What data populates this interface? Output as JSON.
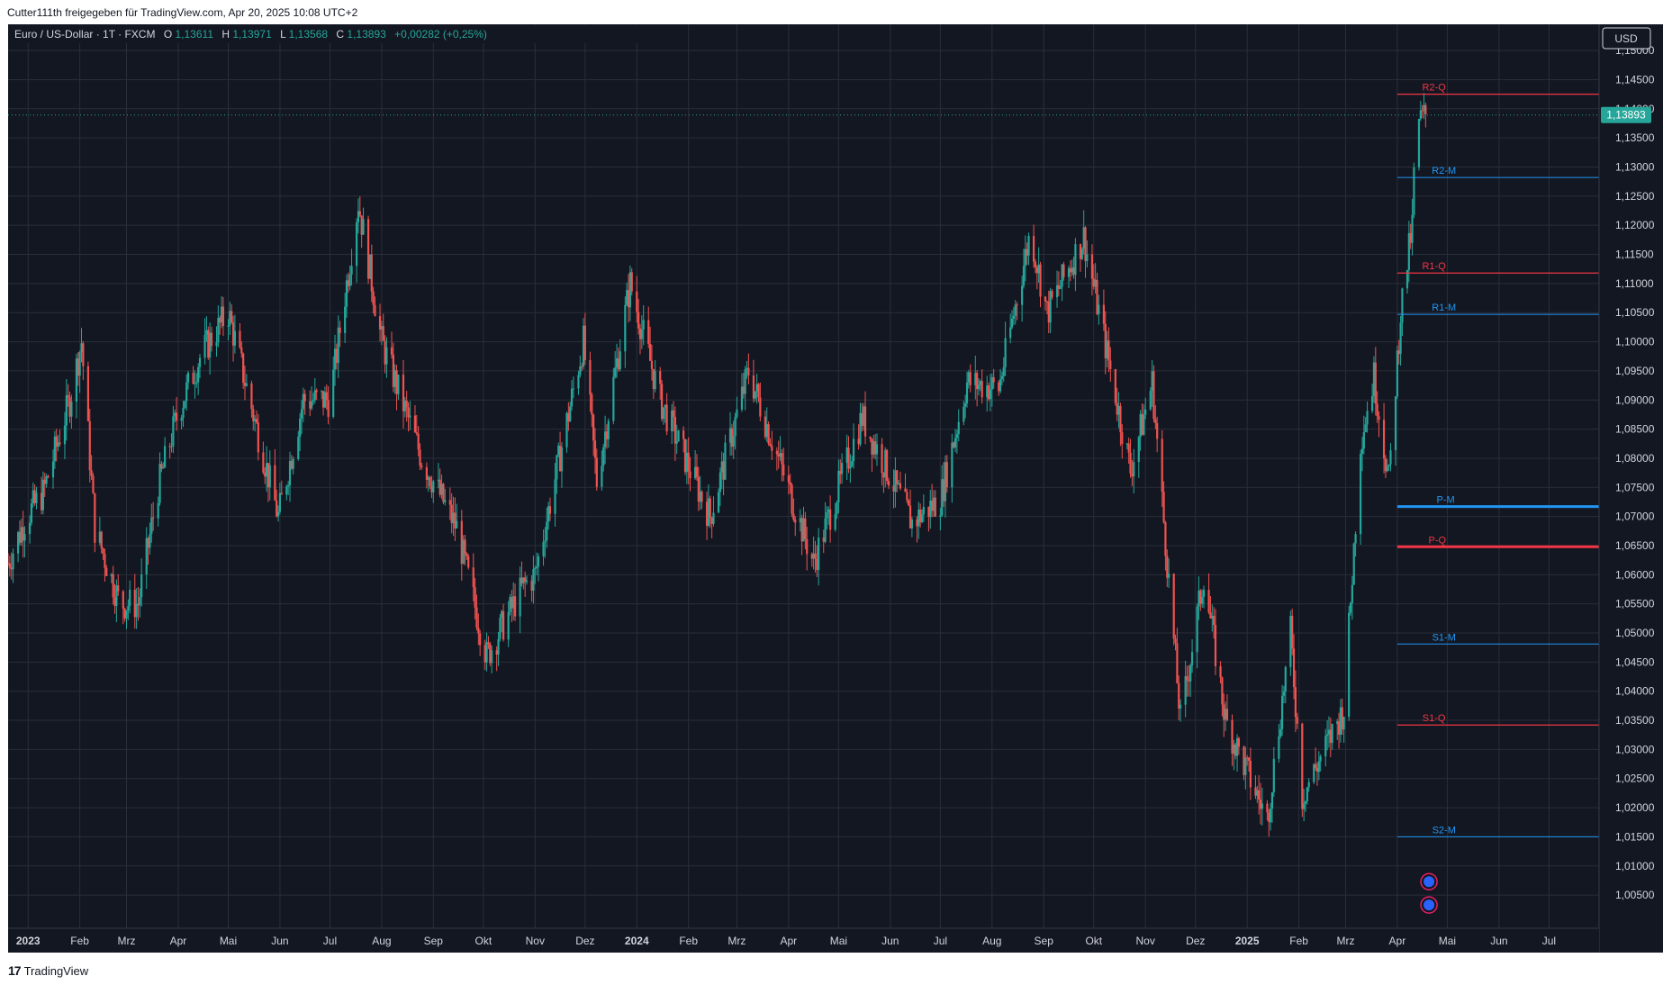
{
  "share_line": "Cutter111th freigegeben für TradingView.com, Apr 20, 2025 10:08 UTC+2",
  "footer": {
    "logo_mark": "17",
    "logo_text": "TradingView"
  },
  "currency_button": "USD",
  "legend": {
    "symbol": "Euro / US-Dollar · 1T · FXCM",
    "o_label": "O",
    "o_value": "1,13611",
    "h_label": "H",
    "h_value": "1,13971",
    "l_label": "L",
    "l_value": "1,13568",
    "c_label": "C",
    "c_value": "1,13893",
    "change": "+0,00282 (+0,25%)"
  },
  "colors": {
    "background": "#131722",
    "grid": "#2a2e39",
    "up": "#26a69a",
    "down": "#ef5350",
    "monthly_pivot": "#2196f3",
    "quarterly_pivot": "#f23645",
    "text": "#d1d4dc"
  },
  "chart_data": {
    "type": "candlestick",
    "symbol": "EUR/USD",
    "interval": "1D",
    "y_axis": {
      "range": [
        0.9993,
        1.1545
      ],
      "ticks": [
        "1,15000",
        "1,14500",
        "1,14000",
        "1,13500",
        "1,13000",
        "1,12500",
        "1,12000",
        "1,11500",
        "1,11000",
        "1,10500",
        "1,10000",
        "1,09500",
        "1,09000",
        "1,08500",
        "1,08000",
        "1,07500",
        "1,07000",
        "1,06500",
        "1,06000",
        "1,05500",
        "1,05000",
        "1,04500",
        "1,04000",
        "1,03500",
        "1,03000",
        "1,02500",
        "1,02000",
        "1,01500",
        "1,01000",
        "1,00500"
      ],
      "tick_values": [
        1.15,
        1.145,
        1.14,
        1.135,
        1.13,
        1.125,
        1.12,
        1.115,
        1.11,
        1.105,
        1.1,
        1.095,
        1.09,
        1.085,
        1.08,
        1.075,
        1.07,
        1.065,
        1.06,
        1.055,
        1.05,
        1.045,
        1.04,
        1.035,
        1.03,
        1.025,
        1.02,
        1.015,
        1.01,
        1.005
      ]
    },
    "x_axis": {
      "start": "2022-12-20",
      "end": "2025-07-31",
      "labels": [
        {
          "date": "2023-01-01",
          "text": "2023",
          "bold": true
        },
        {
          "date": "2023-02-01",
          "text": "Feb"
        },
        {
          "date": "2023-03-01",
          "text": "Mrz"
        },
        {
          "date": "2023-04-01",
          "text": "Apr"
        },
        {
          "date": "2023-05-01",
          "text": "Mai"
        },
        {
          "date": "2023-06-01",
          "text": "Jun"
        },
        {
          "date": "2023-07-01",
          "text": "Jul"
        },
        {
          "date": "2023-08-01",
          "text": "Aug"
        },
        {
          "date": "2023-09-01",
          "text": "Sep"
        },
        {
          "date": "2023-10-01",
          "text": "Okt"
        },
        {
          "date": "2023-11-01",
          "text": "Nov"
        },
        {
          "date": "2023-12-01",
          "text": "Dez"
        },
        {
          "date": "2024-01-01",
          "text": "2024",
          "bold": true
        },
        {
          "date": "2024-02-01",
          "text": "Feb"
        },
        {
          "date": "2024-03-01",
          "text": "Mrz"
        },
        {
          "date": "2024-04-01",
          "text": "Apr"
        },
        {
          "date": "2024-05-01",
          "text": "Mai"
        },
        {
          "date": "2024-06-01",
          "text": "Jun"
        },
        {
          "date": "2024-07-01",
          "text": "Jul"
        },
        {
          "date": "2024-08-01",
          "text": "Aug"
        },
        {
          "date": "2024-09-01",
          "text": "Sep"
        },
        {
          "date": "2024-10-01",
          "text": "Okt"
        },
        {
          "date": "2024-11-01",
          "text": "Nov"
        },
        {
          "date": "2024-12-01",
          "text": "Dez"
        },
        {
          "date": "2025-01-01",
          "text": "2025",
          "bold": true
        },
        {
          "date": "2025-02-01",
          "text": "Feb"
        },
        {
          "date": "2025-03-01",
          "text": "Mrz"
        },
        {
          "date": "2025-04-01",
          "text": "Apr"
        },
        {
          "date": "2025-05-01",
          "text": "Mai"
        },
        {
          "date": "2025-06-01",
          "text": "Jun"
        },
        {
          "date": "2025-07-01",
          "text": "Jul"
        }
      ]
    },
    "price_path": [
      {
        "date": "2022-12-20",
        "value": 1.062
      },
      {
        "date": "2022-12-31",
        "value": 1.07
      },
      {
        "date": "2023-01-10",
        "value": 1.074
      },
      {
        "date": "2023-01-26",
        "value": 1.09
      },
      {
        "date": "2023-02-02",
        "value": 1.1
      },
      {
        "date": "2023-02-10",
        "value": 1.068
      },
      {
        "date": "2023-02-25",
        "value": 1.055
      },
      {
        "date": "2023-03-08",
        "value": 1.055
      },
      {
        "date": "2023-03-20",
        "value": 1.075
      },
      {
        "date": "2023-04-01",
        "value": 1.088
      },
      {
        "date": "2023-04-15",
        "value": 1.098
      },
      {
        "date": "2023-05-01",
        "value": 1.105
      },
      {
        "date": "2023-05-31",
        "value": 1.07
      },
      {
        "date": "2023-06-15",
        "value": 1.09
      },
      {
        "date": "2023-07-01",
        "value": 1.09
      },
      {
        "date": "2023-07-18",
        "value": 1.124
      },
      {
        "date": "2023-08-01",
        "value": 1.1
      },
      {
        "date": "2023-08-25",
        "value": 1.08
      },
      {
        "date": "2023-09-15",
        "value": 1.068
      },
      {
        "date": "2023-10-03",
        "value": 1.046
      },
      {
        "date": "2023-10-25",
        "value": 1.058
      },
      {
        "date": "2023-11-01",
        "value": 1.06
      },
      {
        "date": "2023-11-30",
        "value": 1.1
      },
      {
        "date": "2023-12-08",
        "value": 1.076
      },
      {
        "date": "2023-12-28",
        "value": 1.11
      },
      {
        "date": "2024-01-15",
        "value": 1.09
      },
      {
        "date": "2024-02-14",
        "value": 1.07
      },
      {
        "date": "2024-03-08",
        "value": 1.095
      },
      {
        "date": "2024-04-16",
        "value": 1.062
      },
      {
        "date": "2024-05-15",
        "value": 1.087
      },
      {
        "date": "2024-06-14",
        "value": 1.069
      },
      {
        "date": "2024-07-01",
        "value": 1.073
      },
      {
        "date": "2024-07-17",
        "value": 1.093
      },
      {
        "date": "2024-08-05",
        "value": 1.092
      },
      {
        "date": "2024-08-24",
        "value": 1.119
      },
      {
        "date": "2024-09-03",
        "value": 1.105
      },
      {
        "date": "2024-09-25",
        "value": 1.118
      },
      {
        "date": "2024-10-23",
        "value": 1.078
      },
      {
        "date": "2024-11-05",
        "value": 1.093
      },
      {
        "date": "2024-11-22",
        "value": 1.035
      },
      {
        "date": "2024-12-06",
        "value": 1.06
      },
      {
        "date": "2024-12-19",
        "value": 1.035
      },
      {
        "date": "2025-01-13",
        "value": 1.018
      },
      {
        "date": "2025-01-27",
        "value": 1.05
      },
      {
        "date": "2025-02-03",
        "value": 1.022
      },
      {
        "date": "2025-02-28",
        "value": 1.037
      },
      {
        "date": "2025-03-10",
        "value": 1.083
      },
      {
        "date": "2025-03-18",
        "value": 1.094
      },
      {
        "date": "2025-03-27",
        "value": 1.076
      },
      {
        "date": "2025-04-03",
        "value": 1.105
      },
      {
        "date": "2025-04-10",
        "value": 1.12
      },
      {
        "date": "2025-04-12",
        "value": 1.137
      },
      {
        "date": "2025-04-18",
        "value": 1.139
      }
    ],
    "last_price": {
      "value": 1.13893,
      "label": "1,13893"
    },
    "pivot_lines": [
      {
        "name": "R2-Q",
        "value": 1.1425,
        "kind": "quarterly",
        "width": 1.3,
        "label_x_date": "2025-04-23"
      },
      {
        "name": "R2-M",
        "value": 1.1282,
        "kind": "monthly",
        "width": 1,
        "label_x_date": "2025-04-29"
      },
      {
        "name": "R1-Q",
        "value": 1.1118,
        "kind": "quarterly",
        "width": 1.3,
        "label_x_date": "2025-04-23"
      },
      {
        "name": "R1-M",
        "value": 1.1047,
        "kind": "monthly",
        "width": 1,
        "label_x_date": "2025-04-29"
      },
      {
        "name": "P-M",
        "value": 1.0717,
        "kind": "monthly",
        "width": 3,
        "label_x_date": "2025-04-30"
      },
      {
        "name": "P-Q",
        "value": 1.0648,
        "kind": "quarterly",
        "width": 3,
        "label_x_date": "2025-04-25"
      },
      {
        "name": "S1-M",
        "value": 1.0481,
        "kind": "monthly",
        "width": 1,
        "label_x_date": "2025-04-29"
      },
      {
        "name": "S1-Q",
        "value": 1.0342,
        "kind": "quarterly",
        "width": 1.3,
        "label_x_date": "2025-04-23"
      },
      {
        "name": "S2-M",
        "value": 1.015,
        "kind": "monthly",
        "width": 1,
        "label_x_date": "2025-04-29"
      }
    ],
    "pivot_start_date": "2025-04-01",
    "event_markers": [
      {
        "date": "2025-04-20",
        "value": 1.0073
      },
      {
        "date": "2025-04-20",
        "value": 1.0033
      }
    ]
  }
}
